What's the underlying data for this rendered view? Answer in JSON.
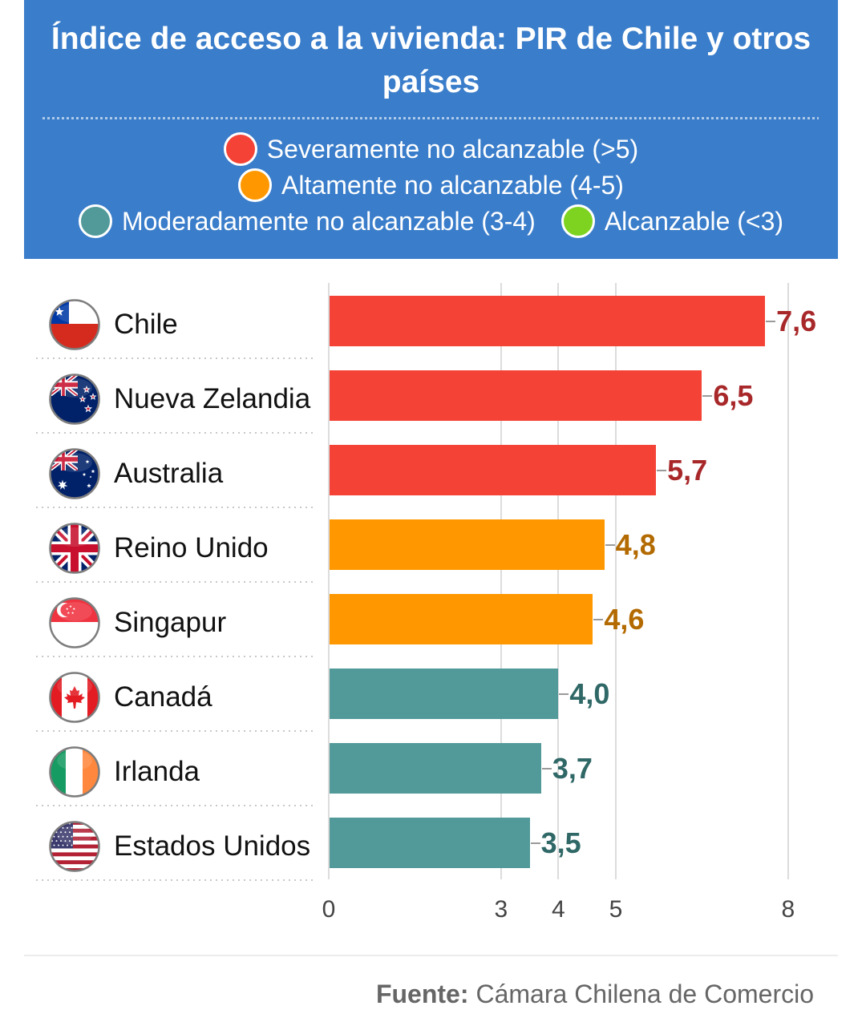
{
  "colors": {
    "header_bg": "#3a7dca",
    "grid": "#dcdcdc",
    "country_text": "#111111",
    "tick_text": "#444444",
    "footer_text": "#666666"
  },
  "chart_data": {
    "type": "bar",
    "orientation": "horizontal",
    "title": "Índice de acceso a la vivienda: PIR de Chile y otros países",
    "xlabel": "",
    "ylabel": "",
    "categories": [
      "Chile",
      "Nueva Zelandia",
      "Australia",
      "Reino Unido",
      "Singapur",
      "Canadá",
      "Irlanda",
      "Estados Unidos"
    ],
    "flag_icons": [
      "flag-chile-icon",
      "flag-new-zealand-icon",
      "flag-australia-icon",
      "flag-united-kingdom-icon",
      "flag-singapore-icon",
      "flag-canada-icon",
      "flag-ireland-icon",
      "flag-united-states-icon"
    ],
    "values": [
      7.6,
      6.5,
      5.7,
      4.8,
      4.6,
      4.0,
      3.7,
      3.5
    ],
    "value_labels": [
      "7,6",
      "6,5",
      "5,7",
      "4,8",
      "4,6",
      "4,0",
      "3,7",
      "3,5"
    ],
    "groups": [
      "severe",
      "severe",
      "severe",
      "high",
      "high",
      "moderate",
      "moderate",
      "moderate"
    ],
    "legend": [
      {
        "key": "severe",
        "label": "Severamente no alcanzable (>5)",
        "color": "#f44336",
        "label_color": "#a8282a"
      },
      {
        "key": "high",
        "label": "Altamente no alcanzable (4-5)",
        "color": "#ff9800",
        "label_color": "#b36a00"
      },
      {
        "key": "moderate",
        "label": "Moderadamente no alcanzable (3-4)",
        "color": "#529a9a",
        "label_color": "#2f6866"
      },
      {
        "key": "affordable",
        "label": "Alcanzable (<3)",
        "color": "#7ed321"
      }
    ],
    "legend_placement": "top",
    "xlim": [
      0,
      8
    ],
    "x_ticks": [
      0,
      3,
      4,
      5,
      8
    ],
    "x_tick_labels": [
      "0",
      "3",
      "4",
      "5",
      "8"
    ],
    "grid": true
  },
  "footer": {
    "source_label": "Fuente:",
    "source_text": "Cámara Chilena de Comercio"
  }
}
